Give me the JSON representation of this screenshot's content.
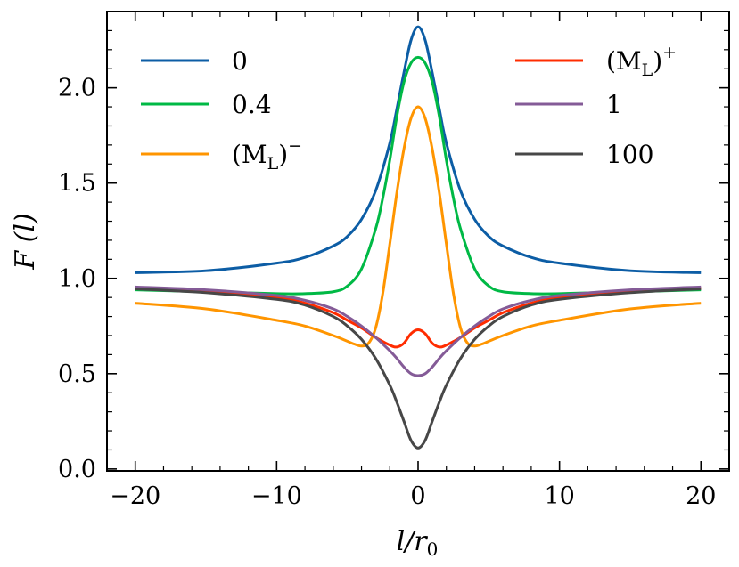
{
  "chart_data": {
    "type": "line",
    "title": "",
    "xlabel": "l/r₀",
    "ylabel": "F (l)",
    "xlim": [
      -22,
      22
    ],
    "ylim": [
      -0.01,
      2.4
    ],
    "xticks": [
      -20,
      -10,
      0,
      10,
      20
    ],
    "xtick_labels": [
      "−20",
      "−10",
      "0",
      "10",
      "20"
    ],
    "yticks": [
      0.0,
      0.5,
      1.0,
      1.5,
      2.0
    ],
    "ytick_labels": [
      "0.0",
      "0.5",
      "1.0",
      "1.5",
      "2.0"
    ],
    "grid": false,
    "legend_location": "top, two columns",
    "series": [
      {
        "name": "0",
        "label_main": "0",
        "label_sub": "",
        "label_sup": "",
        "color": "#0C5DA5",
        "x": [
          -20,
          -15,
          -10,
          -8,
          -6,
          -5,
          -4,
          -3,
          -2,
          -1.5,
          -1,
          -0.5,
          0,
          0.5,
          1,
          1.5,
          2,
          3,
          4,
          5,
          6,
          8,
          10,
          15,
          20
        ],
        "y": [
          1.03,
          1.04,
          1.08,
          1.11,
          1.17,
          1.22,
          1.31,
          1.46,
          1.71,
          1.89,
          2.08,
          2.25,
          2.32,
          2.25,
          2.08,
          1.89,
          1.71,
          1.46,
          1.31,
          1.22,
          1.17,
          1.11,
          1.08,
          1.04,
          1.03
        ]
      },
      {
        "name": "0.4",
        "label_main": "0.4",
        "label_sub": "",
        "label_sup": "",
        "color": "#00B945",
        "x": [
          -20,
          -15,
          -10,
          -8,
          -6,
          -5,
          -4,
          -3,
          -2.5,
          -2,
          -1.5,
          -1,
          -0.5,
          0,
          0.5,
          1,
          1.5,
          2,
          2.5,
          3,
          4,
          5,
          6,
          8,
          10,
          15,
          20
        ],
        "y": [
          0.94,
          0.93,
          0.92,
          0.92,
          0.93,
          0.96,
          1.05,
          1.26,
          1.42,
          1.62,
          1.85,
          2.03,
          2.13,
          2.16,
          2.13,
          2.03,
          1.85,
          1.62,
          1.42,
          1.26,
          1.05,
          0.96,
          0.93,
          0.92,
          0.92,
          0.93,
          0.94
        ]
      },
      {
        "name": "(M_L)^-",
        "label_main": "(M",
        "label_sub": "L",
        "label_sup": "−",
        "color": "#FF9500",
        "x": [
          -20,
          -15,
          -10,
          -8,
          -6,
          -5,
          -4.5,
          -4,
          -3.5,
          -3,
          -2.5,
          -2,
          -1.5,
          -1,
          -0.5,
          0,
          0.5,
          1,
          1.5,
          2,
          2.5,
          3,
          3.5,
          4,
          4.5,
          5,
          6,
          8,
          10,
          15,
          20
        ],
        "y": [
          0.87,
          0.84,
          0.78,
          0.75,
          0.7,
          0.67,
          0.655,
          0.645,
          0.66,
          0.74,
          0.92,
          1.18,
          1.45,
          1.68,
          1.84,
          1.9,
          1.84,
          1.68,
          1.45,
          1.18,
          0.92,
          0.74,
          0.66,
          0.645,
          0.655,
          0.67,
          0.7,
          0.75,
          0.78,
          0.84,
          0.87
        ]
      },
      {
        "name": "(M_L)^+",
        "label_main": "(M",
        "label_sub": "L",
        "label_sup": "+",
        "color": "#FF2C00",
        "x": [
          -20,
          -15,
          -10,
          -8,
          -6,
          -5,
          -4,
          -3,
          -2,
          -1.5,
          -1,
          -0.5,
          0,
          0.5,
          1,
          1.5,
          2,
          3,
          4,
          5,
          6,
          8,
          10,
          15,
          20
        ],
        "y": [
          0.95,
          0.93,
          0.9,
          0.87,
          0.82,
          0.78,
          0.74,
          0.69,
          0.65,
          0.64,
          0.66,
          0.71,
          0.73,
          0.71,
          0.66,
          0.64,
          0.65,
          0.69,
          0.74,
          0.78,
          0.82,
          0.87,
          0.9,
          0.93,
          0.95
        ]
      },
      {
        "name": "1",
        "label_main": "1",
        "label_sub": "",
        "label_sup": "",
        "color": "#845B97",
        "x": [
          -20,
          -15,
          -10,
          -8,
          -6,
          -5,
          -4,
          -3,
          -2,
          -1.5,
          -1,
          -0.5,
          0,
          0.5,
          1,
          1.5,
          2,
          3,
          4,
          5,
          6,
          8,
          10,
          15,
          20
        ],
        "y": [
          0.955,
          0.94,
          0.91,
          0.885,
          0.84,
          0.8,
          0.75,
          0.69,
          0.62,
          0.58,
          0.535,
          0.5,
          0.49,
          0.5,
          0.535,
          0.58,
          0.62,
          0.69,
          0.75,
          0.8,
          0.84,
          0.885,
          0.91,
          0.94,
          0.955
        ]
      },
      {
        "name": "100",
        "label_main": "100",
        "label_sub": "",
        "label_sup": "",
        "color": "#474747",
        "x": [
          -20,
          -15,
          -10,
          -8,
          -6,
          -5,
          -4,
          -3,
          -2,
          -1.5,
          -1,
          -0.5,
          0,
          0.5,
          1,
          1.5,
          2,
          3,
          4,
          5,
          6,
          8,
          10,
          15,
          20
        ],
        "y": [
          0.945,
          0.925,
          0.89,
          0.86,
          0.8,
          0.75,
          0.68,
          0.58,
          0.44,
          0.35,
          0.25,
          0.15,
          0.11,
          0.15,
          0.25,
          0.35,
          0.44,
          0.58,
          0.68,
          0.75,
          0.8,
          0.86,
          0.89,
          0.925,
          0.945
        ]
      }
    ]
  }
}
